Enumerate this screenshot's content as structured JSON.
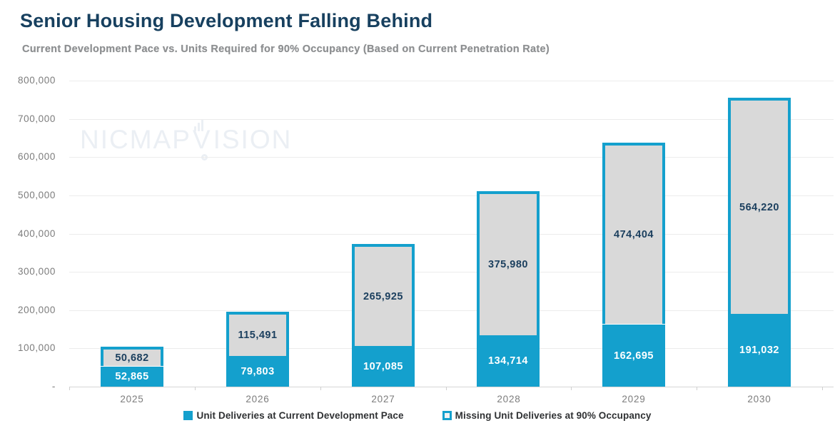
{
  "page": {
    "title": "Senior Housing Development Falling Behind",
    "subtitle": "Current Development Pace vs. Units Required for 90% Occupancy (Based on Current Penetration Rate)"
  },
  "watermark": {
    "pre": "NICMAP",
    "v": "V",
    "post": "ISION"
  },
  "colors": {
    "accent_blue": "#14a0cd",
    "bar_gray": "#d9d9d9",
    "title_navy": "#17405f",
    "segment_label_navy": "#1b3f5e",
    "segment_label_white": "#ffffff",
    "axis_text_gray": "#7c7c7c",
    "gridline_gray": "#ececec",
    "baseline_gray": "#d6d6d6",
    "legend_text": "#2f3133",
    "watermark_gray": "#ebeff4"
  },
  "chart_data": {
    "type": "bar",
    "stacked": true,
    "title": "Senior Housing Development Falling Behind",
    "subtitle": "Current Development Pace vs. Units Required for 90% Occupancy (Based on Current Penetration Rate)",
    "categories": [
      "2025",
      "2026",
      "2027",
      "2028",
      "2029",
      "2030"
    ],
    "series": [
      {
        "name": "Unit Deliveries at Current Development Pace",
        "marker": "solid",
        "color": "#14a0cd",
        "values": [
          52865,
          79803,
          107085,
          134714,
          162695,
          191032
        ],
        "labels": [
          "52,865",
          "79,803",
          "107,085",
          "134,714",
          "162,695",
          "191,032"
        ]
      },
      {
        "name": "Missing Unit Deliveries at 90% Occupancy",
        "marker": "outlined",
        "color": "#d9d9d9",
        "border_color": "#14a0cd",
        "values": [
          50682,
          115491,
          265925,
          375980,
          474404,
          564220
        ],
        "labels": [
          "50,682",
          "115,491",
          "265,925",
          "375,980",
          "474,404",
          "564,220"
        ]
      }
    ],
    "ylim": [
      0,
      800000
    ],
    "ytick_step": 100000,
    "ytick_labels_bottom_to_top": [
      "-",
      "100,000",
      "200,000",
      "300,000",
      "400,000",
      "500,000",
      "600,000",
      "700,000",
      "800,000"
    ],
    "grid": true,
    "legend_position": "bottom"
  }
}
